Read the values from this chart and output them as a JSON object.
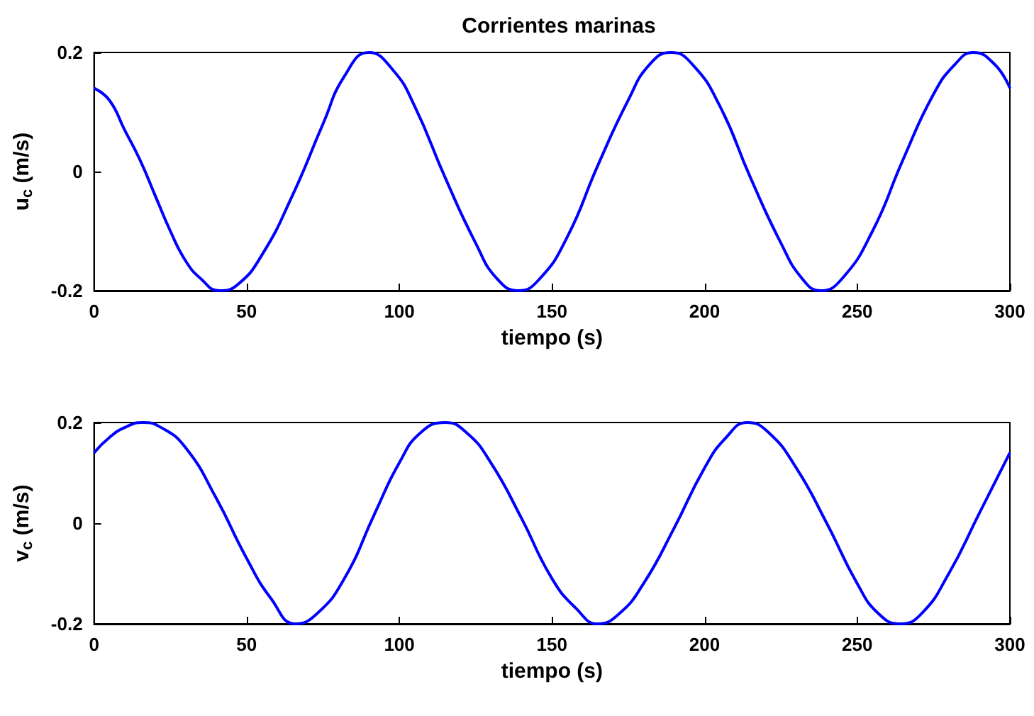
{
  "chart_data": [
    {
      "type": "line",
      "title": "Corrientes marinas",
      "xlabel": "tiempo (s)",
      "ylabel": "u$_{c}$ (m/s)",
      "xlim": [
        0,
        300
      ],
      "xticks": [
        0,
        50,
        100,
        150,
        200,
        250,
        300
      ],
      "ylim": [
        -0.2,
        0.2
      ],
      "yticks": [
        -0.2,
        0,
        0.2
      ],
      "series": [
        {
          "color": "#0000ff",
          "x": [
            0,
            5,
            10,
            15,
            20,
            25,
            30,
            35,
            41,
            47,
            55,
            65,
            75,
            82,
            90,
            98,
            105,
            115,
            125,
            132,
            139,
            146,
            155,
            165,
            175,
            182,
            189,
            196,
            205,
            215,
            225,
            232,
            238,
            245,
            255,
            265,
            275,
            282,
            288,
            295,
            300
          ],
          "values": [
            0.14,
            0.12,
            0.07,
            0.02,
            -0.04,
            -0.1,
            -0.15,
            -0.18,
            -0.2,
            -0.19,
            -0.14,
            -0.04,
            0.08,
            0.16,
            0.2,
            0.17,
            0.11,
            -0.01,
            -0.12,
            -0.18,
            -0.2,
            -0.18,
            -0.11,
            0.01,
            0.12,
            0.18,
            0.2,
            0.18,
            0.11,
            -0.01,
            -0.12,
            -0.18,
            -0.2,
            -0.18,
            -0.1,
            0.02,
            0.13,
            0.18,
            0.2,
            0.18,
            0.14
          ]
        }
      ]
    },
    {
      "type": "line",
      "xlabel": "tiempo (s)",
      "ylabel": "v$_{c}$ (m/s)",
      "xlim": [
        0,
        300
      ],
      "xticks": [
        0,
        50,
        100,
        150,
        200,
        250,
        300
      ],
      "ylim": [
        -0.2,
        0.2
      ],
      "yticks": [
        -0.2,
        0,
        0.2
      ],
      "series": [
        {
          "color": "#0000ff",
          "x": [
            0,
            5,
            10,
            16,
            22,
            30,
            40,
            50,
            58,
            66,
            73,
            82,
            92,
            100,
            107,
            115,
            122,
            130,
            140,
            150,
            158,
            165,
            172,
            180,
            190,
            200,
            207,
            214,
            221,
            230,
            240,
            250,
            257,
            264,
            271,
            280,
            290,
            300
          ],
          "values": [
            0.14,
            0.17,
            0.19,
            0.2,
            0.19,
            0.15,
            0.05,
            -0.07,
            -0.15,
            -0.2,
            -0.18,
            -0.11,
            0.02,
            0.12,
            0.18,
            0.2,
            0.18,
            0.12,
            0.01,
            -0.11,
            -0.17,
            -0.2,
            -0.18,
            -0.12,
            -0.01,
            0.11,
            0.17,
            0.2,
            0.18,
            0.11,
            0,
            -0.12,
            -0.18,
            -0.2,
            -0.18,
            -0.1,
            0.02,
            0.14
          ]
        }
      ]
    }
  ]
}
